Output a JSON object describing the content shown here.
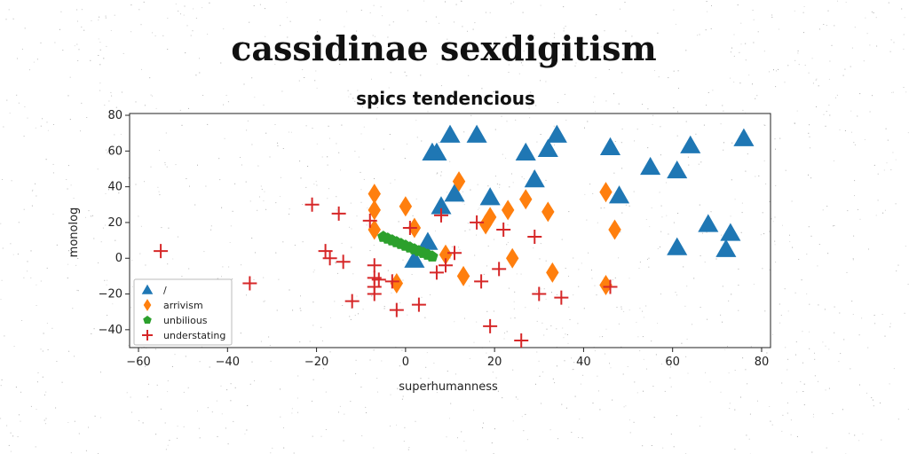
{
  "chart_data": {
    "type": "scatter",
    "title": "cassidinae sexdigitism",
    "subtitle": "spics tendencious",
    "xlabel": "superhumanness",
    "ylabel": "monolog",
    "xlim": [
      -62,
      82
    ],
    "ylim": [
      -50,
      81
    ],
    "xticks": [
      -60,
      -40,
      -20,
      0,
      20,
      40,
      60,
      80
    ],
    "yticks": [
      -40,
      -20,
      0,
      20,
      40,
      60,
      80
    ],
    "grid": false,
    "legend_position": "lower-left",
    "series": [
      {
        "name": "/",
        "marker": "triangle",
        "color": "#1f77b4",
        "points": [
          [
            10,
            69
          ],
          [
            16,
            69
          ],
          [
            7,
            59
          ],
          [
            6,
            59
          ],
          [
            27,
            59
          ],
          [
            32,
            61
          ],
          [
            34,
            69
          ],
          [
            46,
            62
          ],
          [
            48,
            35
          ],
          [
            64,
            63
          ],
          [
            76,
            67
          ],
          [
            55,
            51
          ],
          [
            61,
            49
          ],
          [
            29,
            44
          ],
          [
            8,
            29
          ],
          [
            11,
            36
          ],
          [
            19,
            34
          ],
          [
            68,
            19
          ],
          [
            73,
            14
          ],
          [
            72,
            5
          ],
          [
            61,
            6
          ],
          [
            5,
            9
          ],
          [
            2,
            -1
          ]
        ]
      },
      {
        "name": "arrivism",
        "marker": "diamond",
        "color": "#ff7f0e",
        "points": [
          [
            -7,
            36
          ],
          [
            -7,
            27
          ],
          [
            -7,
            16
          ],
          [
            0,
            29
          ],
          [
            2,
            17
          ],
          [
            12,
            43
          ],
          [
            18,
            19
          ],
          [
            19,
            23
          ],
          [
            23,
            27
          ],
          [
            27,
            33
          ],
          [
            32,
            26
          ],
          [
            45,
            37
          ],
          [
            47,
            16
          ],
          [
            9,
            2
          ],
          [
            24,
            0
          ],
          [
            33,
            -8
          ],
          [
            13,
            -10
          ],
          [
            45,
            -15
          ],
          [
            -2,
            -14
          ]
        ]
      },
      {
        "name": "unbilious",
        "marker": "pentagon",
        "color": "#2ca02c",
        "points": [
          [
            -5,
            12
          ],
          [
            -4,
            11
          ],
          [
            -3,
            10
          ],
          [
            -2,
            9
          ],
          [
            -1,
            8
          ],
          [
            0,
            7
          ],
          [
            1,
            6
          ],
          [
            2,
            5
          ],
          [
            3,
            4
          ],
          [
            4,
            3
          ],
          [
            5,
            2
          ],
          [
            6,
            1
          ]
        ]
      },
      {
        "name": "understating",
        "marker": "plus",
        "color": "#d62728",
        "points": [
          [
            -55,
            4
          ],
          [
            -35,
            -14
          ],
          [
            -21,
            30
          ],
          [
            -15,
            25
          ],
          [
            -18,
            4
          ],
          [
            -17,
            0
          ],
          [
            -14,
            -2
          ],
          [
            -12,
            -24
          ],
          [
            -8,
            21
          ],
          [
            -7,
            -4
          ],
          [
            -7,
            -11
          ],
          [
            -7,
            -16
          ],
          [
            -7,
            -20
          ],
          [
            -6,
            -12
          ],
          [
            -3,
            -13
          ],
          [
            -2,
            -29
          ],
          [
            3,
            -26
          ],
          [
            1,
            17
          ],
          [
            7,
            -8
          ],
          [
            8,
            24
          ],
          [
            9,
            -4
          ],
          [
            11,
            3
          ],
          [
            16,
            20
          ],
          [
            17,
            -13
          ],
          [
            19,
            -38
          ],
          [
            21,
            -6
          ],
          [
            22,
            16
          ],
          [
            26,
            -46
          ],
          [
            29,
            12
          ],
          [
            30,
            -20
          ],
          [
            35,
            -22
          ],
          [
            46,
            -16
          ]
        ]
      }
    ]
  }
}
